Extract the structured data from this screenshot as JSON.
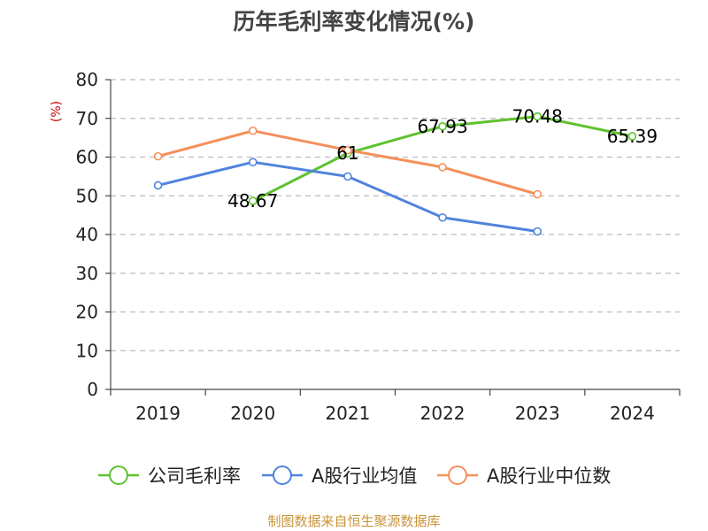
{
  "chart_data": {
    "type": "line",
    "title": "历年毛利率变化情况(%)",
    "ylabel": "(%)",
    "xlabel": "",
    "categories": [
      "2019",
      "2020",
      "2021",
      "2022",
      "2023",
      "2024"
    ],
    "ylim": [
      0,
      80
    ],
    "yticks": [
      0,
      10,
      20,
      30,
      40,
      50,
      60,
      70,
      80
    ],
    "grid": "horizontal-dashed",
    "legend_position": "bottom",
    "series": [
      {
        "name": "公司毛利率",
        "color": "#5ec22e",
        "values": [
          null,
          48.67,
          61,
          67.93,
          70.48,
          65.39
        ],
        "labels": [
          "",
          "48.67",
          "61",
          "67.93",
          "70.48",
          "65.39"
        ]
      },
      {
        "name": "A股行业均值",
        "color": "#5083dd",
        "values": [
          52.7,
          58.7,
          55.0,
          44.4,
          40.8,
          null
        ]
      },
      {
        "name": "A股行业中位数",
        "color": "#f58f5a",
        "values": [
          60.2,
          66.8,
          61.8,
          57.4,
          50.4,
          null
        ]
      }
    ]
  },
  "footer": {
    "source": "制图数据来自恒生聚源数据库"
  },
  "colors": {
    "title": "#444444",
    "ylabel": "#cc0000",
    "source": "#c8943a",
    "grid": "#bbbbbb",
    "axis": "#444444"
  }
}
